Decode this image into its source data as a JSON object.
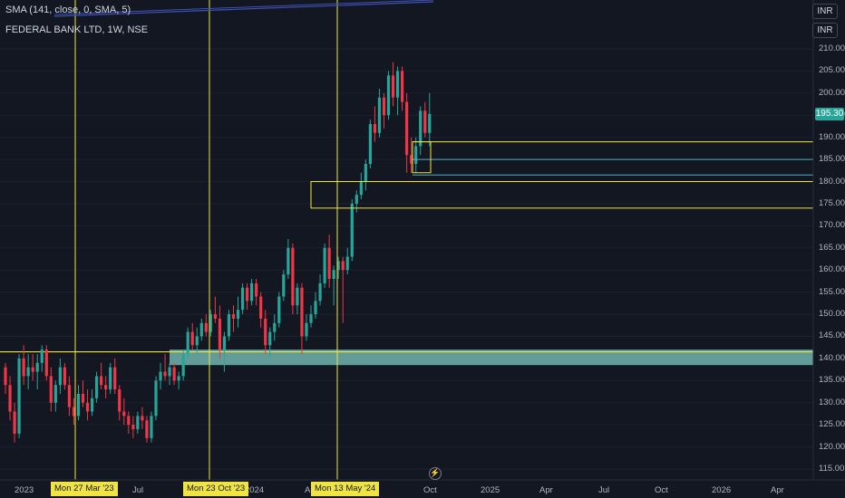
{
  "legend": {
    "sma": "SMA (141, close, 0, SMA, 5)",
    "symbol": "FEDERAL BANK LTD, 1W, NSE"
  },
  "currency_badges": [
    "INR",
    "INR"
  ],
  "last_price_label": "195.30",
  "price_axis": [
    "210.00",
    "205.00",
    "200.00",
    "195.00",
    "190.00",
    "185.00",
    "180.00",
    "175.00",
    "170.00",
    "165.00",
    "160.00",
    "155.00",
    "150.00",
    "145.00",
    "140.00",
    "135.00",
    "130.00",
    "125.00",
    "120.00",
    "115.00"
  ],
  "time_axis": [
    "2023",
    "Jul",
    "2024",
    "Jul",
    "Oct",
    "2025",
    "Apr",
    "Jul",
    "Oct",
    "2026",
    "Apr"
  ],
  "time_axis_partial": "A",
  "crosshair_dates": [
    "Mon 27 Mar '23",
    "Mon 23 Oct '23",
    "Mon 13 May '24"
  ],
  "colors": {
    "up": "#26a69a",
    "down": "#f23645",
    "vline": "#f0e442",
    "zone": "#7ec9c1",
    "background": "#131722"
  },
  "chart_data": {
    "type": "candlestick",
    "price_range": [
      112,
      212
    ],
    "candles": [
      [
        138,
        139,
        132,
        134
      ],
      [
        134,
        136,
        126,
        128
      ],
      [
        128,
        130,
        121,
        123
      ],
      [
        123,
        141,
        122,
        140
      ],
      [
        140,
        143,
        134,
        136
      ],
      [
        136,
        141,
        133,
        138
      ],
      [
        138,
        141,
        135,
        137
      ],
      [
        137,
        141,
        133,
        139
      ],
      [
        139,
        143,
        137,
        142
      ],
      [
        142,
        143,
        135,
        136
      ],
      [
        136,
        138,
        128,
        130
      ],
      [
        130,
        135,
        128,
        134
      ],
      [
        134,
        140,
        132,
        138
      ],
      [
        138,
        139,
        133,
        134
      ],
      [
        134,
        136,
        127,
        129
      ],
      [
        129,
        131,
        125,
        127
      ],
      [
        127,
        134,
        126,
        132
      ],
      [
        132,
        135,
        129,
        130
      ],
      [
        130,
        133,
        126,
        128
      ],
      [
        128,
        133,
        127,
        131
      ],
      [
        131,
        137,
        130,
        136
      ],
      [
        136,
        139,
        133,
        134
      ],
      [
        134,
        136,
        131,
        133
      ],
      [
        133,
        139,
        132,
        138
      ],
      [
        138,
        140,
        132,
        133
      ],
      [
        133,
        134,
        126,
        128
      ],
      [
        128,
        131,
        125,
        127
      ],
      [
        127,
        128,
        123,
        125
      ],
      [
        125,
        127,
        122,
        124
      ],
      [
        124,
        128,
        123,
        127
      ],
      [
        127,
        129,
        124,
        126
      ],
      [
        126,
        127,
        121,
        122
      ],
      [
        122,
        128,
        121,
        127
      ],
      [
        127,
        136,
        126,
        135
      ],
      [
        135,
        139,
        133,
        137
      ],
      [
        137,
        141,
        135,
        136
      ],
      [
        136,
        139,
        134,
        138
      ],
      [
        138,
        139,
        134,
        135
      ],
      [
        135,
        137,
        133,
        136
      ],
      [
        136,
        142,
        135,
        141
      ],
      [
        141,
        147,
        140,
        146
      ],
      [
        146,
        148,
        142,
        143
      ],
      [
        143,
        147,
        141,
        145
      ],
      [
        145,
        149,
        144,
        148
      ],
      [
        148,
        150,
        145,
        146
      ],
      [
        146,
        151,
        145,
        150
      ],
      [
        150,
        154,
        148,
        149
      ],
      [
        149,
        152,
        140,
        142
      ],
      [
        142,
        146,
        137,
        145
      ],
      [
        145,
        151,
        144,
        150
      ],
      [
        150,
        152,
        146,
        149
      ],
      [
        149,
        154,
        147,
        151
      ],
      [
        151,
        157,
        150,
        156
      ],
      [
        156,
        157,
        151,
        153
      ],
      [
        153,
        158,
        152,
        157
      ],
      [
        157,
        158,
        152,
        154
      ],
      [
        154,
        155,
        147,
        149
      ],
      [
        149,
        151,
        141,
        143
      ],
      [
        143,
        147,
        140,
        146
      ],
      [
        146,
        150,
        144,
        148
      ],
      [
        148,
        155,
        147,
        154
      ],
      [
        154,
        160,
        153,
        159
      ],
      [
        159,
        167,
        158,
        165
      ],
      [
        165,
        166,
        150,
        152
      ],
      [
        152,
        157,
        150,
        156
      ],
      [
        156,
        157,
        141,
        145
      ],
      [
        145,
        150,
        144,
        148
      ],
      [
        148,
        152,
        147,
        150
      ],
      [
        150,
        155,
        149,
        153
      ],
      [
        153,
        159,
        152,
        157
      ],
      [
        157,
        166,
        156,
        165
      ],
      [
        165,
        168,
        156,
        158
      ],
      [
        158,
        161,
        152,
        160
      ],
      [
        160,
        163,
        158,
        162
      ],
      [
        162,
        163,
        148,
        160
      ],
      [
        160,
        165,
        159,
        163
      ],
      [
        163,
        176,
        162,
        175
      ],
      [
        175,
        178,
        173,
        177
      ],
      [
        177,
        182,
        176,
        180
      ],
      [
        180,
        185,
        178,
        184
      ],
      [
        184,
        194,
        183,
        193
      ],
      [
        193,
        197,
        189,
        191
      ],
      [
        191,
        201,
        190,
        199
      ],
      [
        199,
        200,
        192,
        195
      ],
      [
        195,
        205,
        194,
        204
      ],
      [
        204,
        207,
        197,
        199
      ],
      [
        199,
        206,
        195,
        205
      ],
      [
        205,
        206,
        196,
        198
      ],
      [
        198,
        200,
        182,
        186
      ],
      [
        186,
        190,
        182,
        184
      ],
      [
        184,
        190,
        182,
        188
      ],
      [
        188,
        197,
        186,
        196
      ],
      [
        196,
        198,
        190,
        191
      ],
      [
        191,
        200,
        188,
        195.3
      ]
    ],
    "horizontal_lines": [
      189,
      185,
      181.5
    ],
    "boxes": [
      {
        "label": "yellow box",
        "price_top": 180,
        "price_bottom": 174
      },
      {
        "label": "support zone",
        "price_top": 142,
        "price_bottom": 138.5
      },
      {
        "label": "small box",
        "price_top": 189,
        "price_bottom": 182
      }
    ]
  }
}
